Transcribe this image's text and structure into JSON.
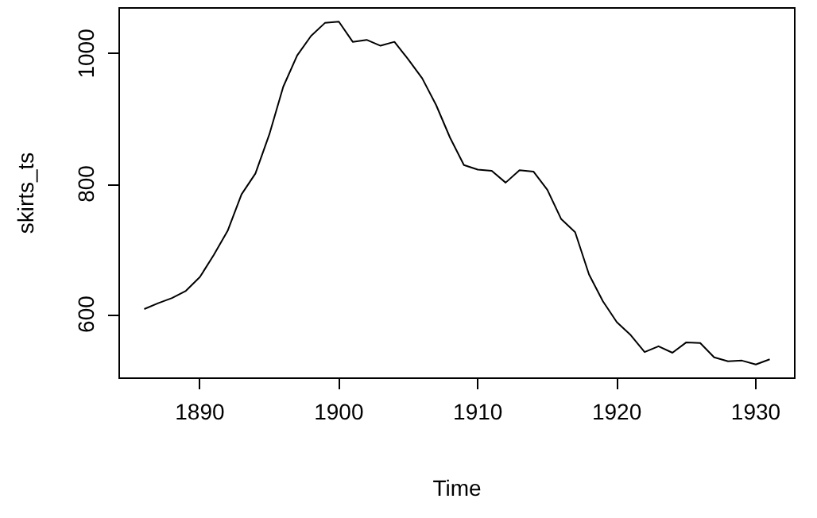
{
  "chart_data": {
    "type": "line",
    "xlabel": "Time",
    "ylabel": "skirts_ts",
    "x": [
      1886,
      1887,
      1888,
      1889,
      1890,
      1891,
      1892,
      1893,
      1894,
      1895,
      1896,
      1897,
      1898,
      1899,
      1900,
      1901,
      1902,
      1903,
      1904,
      1905,
      1906,
      1907,
      1908,
      1909,
      1910,
      1911,
      1912,
      1913,
      1914,
      1915,
      1916,
      1917,
      1918,
      1919,
      1920,
      1921,
      1922,
      1923,
      1924,
      1925,
      1926,
      1927,
      1928,
      1929,
      1930,
      1931
    ],
    "series": [
      {
        "color": "#000000",
        "values": [
          608,
          617,
          625,
          636,
          657,
          691,
          728,
          784,
          816,
          876,
          949,
          997,
          1027,
          1047,
          1049,
          1018,
          1021,
          1012,
          1018,
          991,
          962,
          921,
          871,
          829,
          822,
          820,
          802,
          821,
          819,
          791,
          746,
          726,
          661,
          620,
          588,
          568,
          542,
          551,
          541,
          557,
          556,
          534,
          528,
          529,
          523,
          531
        ]
      }
    ],
    "xlim": [
      1884.2,
      1932.8
    ],
    "xticks": [
      1890,
      1900,
      1910,
      1920,
      1930
    ],
    "ylim": [
      502,
      1070
    ],
    "yticks": [
      600,
      800,
      1000
    ],
    "grid": false
  }
}
